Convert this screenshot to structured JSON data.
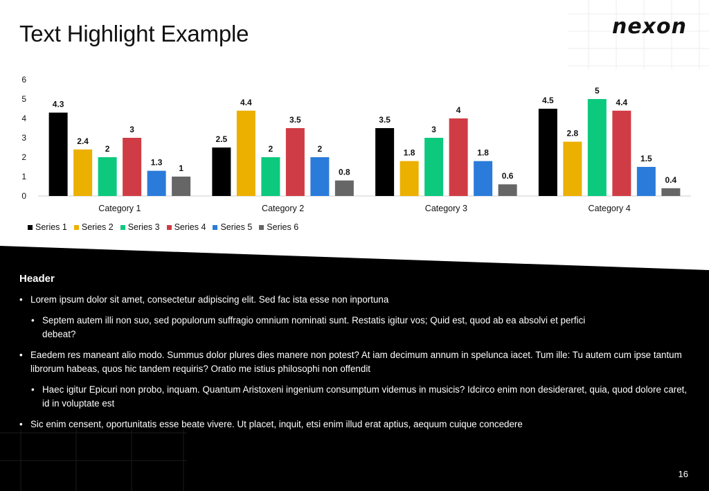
{
  "title": "Text Highlight Example",
  "logo": {
    "text": "nexon",
    "icon": "nexon-logo"
  },
  "chart_data": {
    "type": "bar",
    "categories": [
      "Category 1",
      "Category 2",
      "Category 3",
      "Category 4"
    ],
    "series": [
      {
        "name": "Series 1",
        "color": "#000000",
        "values": [
          4.3,
          2.5,
          3.5,
          4.5
        ]
      },
      {
        "name": "Series 2",
        "color": "#EBB000",
        "values": [
          2.4,
          4.4,
          1.8,
          2.8
        ]
      },
      {
        "name": "Series 3",
        "color": "#0CC97E",
        "values": [
          2,
          2,
          3,
          5
        ]
      },
      {
        "name": "Series 4",
        "color": "#D03C45",
        "values": [
          3,
          3.5,
          4,
          4.4
        ]
      },
      {
        "name": "Series 5",
        "color": "#2B7BDA",
        "values": [
          1.3,
          2,
          1.8,
          1.5
        ]
      },
      {
        "name": "Series 6",
        "color": "#666666",
        "values": [
          1,
          0.8,
          0.6,
          0.4
        ]
      }
    ],
    "ylim": [
      0,
      6
    ],
    "yticks": [
      "0",
      "1",
      "2",
      "3",
      "4",
      "5",
      "6"
    ],
    "title": "",
    "xlabel": "",
    "ylabel": "",
    "grid": false,
    "legend": "bottom-left",
    "data_labels": true
  },
  "body": {
    "header": "Header",
    "bullets": [
      {
        "level": 1,
        "text": "Lorem ipsum dolor sit amet, consectetur adipiscing elit. Sed fac ista esse non inportuna"
      },
      {
        "level": 2,
        "text": "Septem autem illi non suo, sed populorum suffragio omnium nominati sunt. Restatis igitur vos; Quid est, quod ab ea absolvi et perfici debeat?"
      },
      {
        "level": 1,
        "text": "Eaedem res maneant alio modo. Summus dolor plures dies manere non potest? At iam decimum annum in spelunca iacet. Tum ille: Tu autem cum ipse tantum librorum habeas, quos hic tandem requiris? Oratio me istius philosophi non offendit"
      },
      {
        "level": 2,
        "text": "Haec igitur Epicuri non probo, inquam. Quantum Aristoxeni ingenium consumptum videmus in musicis? Idcirco enim non desideraret, quia, quod dolore caret, id in voluptate est"
      },
      {
        "level": 1,
        "text": "Sic enim censent, oportunitatis esse beate vivere. Ut placet, inquit, etsi enim illud erat aptius, aequum cuique concedere"
      }
    ]
  },
  "page_number": "16",
  "colors": {
    "background": "#FFFFFF",
    "dark_panel": "#000000",
    "text_dark": "#111111",
    "text_light": "#FFFFFF"
  }
}
